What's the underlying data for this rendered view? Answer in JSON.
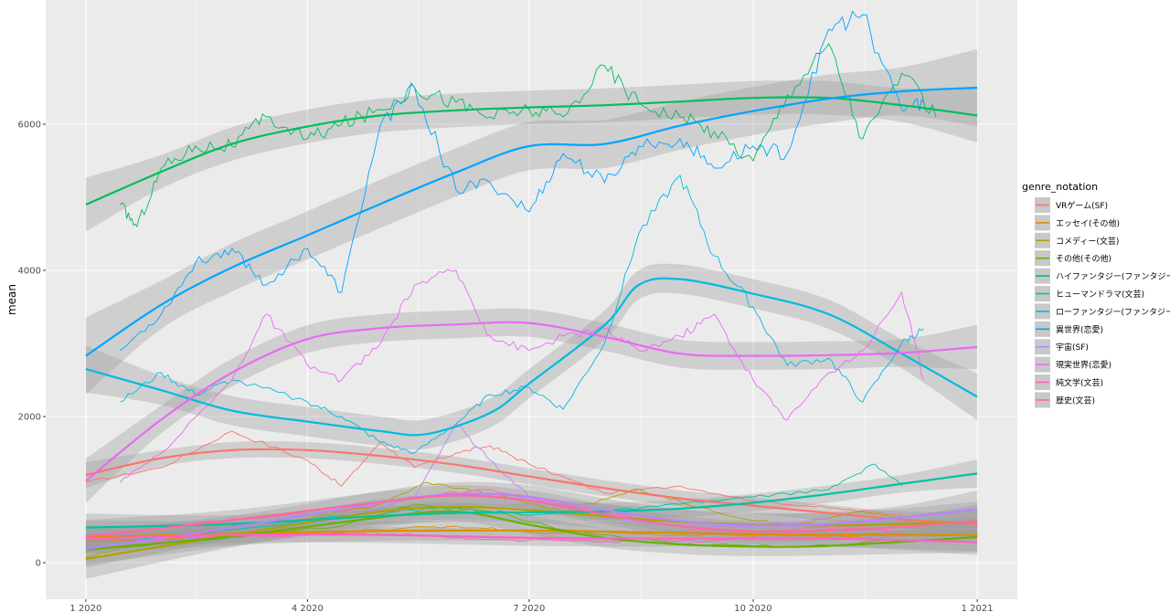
{
  "chart_data": {
    "type": "line",
    "xlabel": "",
    "ylabel": "mean",
    "legend_title": "genre_notation",
    "legend_position": "right",
    "grid": true,
    "panel_background": "#ebebeb",
    "xlim": [
      "2020-01-01",
      "2021-01-01"
    ],
    "ylim": [
      -500,
      7700
    ],
    "x_ticks": [
      {
        "value": "2020-01-01",
        "label": "1 2020"
      },
      {
        "value": "2020-04-01",
        "label": "4 2020"
      },
      {
        "value": "2020-07-01",
        "label": "7 2020"
      },
      {
        "value": "2020-10-01",
        "label": "10 2020"
      },
      {
        "value": "2021-01-01",
        "label": "1 2021"
      }
    ],
    "y_ticks": [
      0,
      2000,
      4000,
      6000
    ],
    "series": [
      {
        "name": "VRゲーム(SF)",
        "color": "#F8766D",
        "raw_x": [
          "2020-01-01",
          "2020-02-01",
          "2020-03-01",
          "2020-04-01",
          "2020-04-15",
          "2020-05-01",
          "2020-05-15",
          "2020-06-01",
          "2020-06-15",
          "2020-07-01",
          "2020-08-01",
          "2020-09-01",
          "2020-10-01",
          "2020-11-01",
          "2020-12-01"
        ],
        "raw_y": [
          1100,
          1300,
          1800,
          1400,
          1050,
          1650,
          1300,
          1500,
          1600,
          1350,
          950,
          1050,
          850,
          750,
          650
        ],
        "smooth_x": [
          "2020-01-01",
          "2020-02-01",
          "2020-03-01",
          "2020-04-01",
          "2020-05-01",
          "2020-06-01",
          "2020-07-01",
          "2020-08-01",
          "2020-09-01",
          "2020-10-01",
          "2020-11-01",
          "2020-12-01",
          "2021-01-01"
        ],
        "smooth_y": [
          1200,
          1430,
          1540,
          1540,
          1460,
          1340,
          1180,
          1020,
          880,
          780,
          680,
          590,
          530
        ],
        "se": 110
      },
      {
        "name": "エッセイ(その他)",
        "color": "#DB8E00",
        "raw_x": [
          "2020-01-01",
          "2020-03-01",
          "2020-05-01",
          "2020-06-01",
          "2020-07-01",
          "2020-09-01",
          "2020-11-01",
          "2020-12-01"
        ],
        "raw_y": [
          300,
          350,
          450,
          500,
          420,
          380,
          360,
          400
        ],
        "smooth_x": [
          "2020-01-01",
          "2020-04-01",
          "2020-07-01",
          "2020-10-01",
          "2021-01-01"
        ],
        "smooth_y": [
          350,
          420,
          440,
          390,
          380
        ],
        "se": 140
      },
      {
        "name": "コメディー(文芸)",
        "color": "#AEA200",
        "raw_x": [
          "2020-01-01",
          "2020-02-01",
          "2020-03-01",
          "2020-04-01",
          "2020-05-01",
          "2020-05-20",
          "2020-06-15",
          "2020-07-15",
          "2020-08-15",
          "2020-09-15",
          "2020-10-15",
          "2020-11-15",
          "2020-12-01"
        ],
        "raw_y": [
          80,
          300,
          500,
          600,
          800,
          1100,
          950,
          700,
          1000,
          700,
          500,
          700,
          600
        ],
        "smooth_x": [
          "2020-01-01",
          "2020-03-01",
          "2020-05-01",
          "2020-06-01",
          "2020-07-01",
          "2020-09-01",
          "2020-11-01",
          "2021-01-01"
        ],
        "smooth_y": [
          50,
          380,
          700,
          760,
          720,
          560,
          510,
          560
        ],
        "se": 170
      },
      {
        "name": "その他(その他)",
        "color": "#64B200",
        "raw_x": [
          "2020-01-15",
          "2020-03-01",
          "2020-04-15",
          "2020-05-15",
          "2020-06-15",
          "2020-07-15",
          "2020-09-01",
          "2020-10-15",
          "2020-12-01"
        ],
        "raw_y": [
          200,
          350,
          500,
          800,
          700,
          450,
          250,
          220,
          300
        ],
        "smooth_x": [
          "2020-01-01",
          "2020-03-01",
          "2020-05-01",
          "2020-06-01",
          "2020-07-01",
          "2020-08-01",
          "2020-09-01",
          "2020-10-01",
          "2020-11-01",
          "2021-01-01"
        ],
        "smooth_y": [
          180,
          360,
          620,
          700,
          520,
          340,
          250,
          220,
          230,
          350
        ],
        "se": 130
      },
      {
        "name": "ハイファンタジー(ファンタジー)",
        "color": "#00BD5C",
        "raw_x": [
          "2020-01-15",
          "2020-01-22",
          "2020-02-01",
          "2020-02-15",
          "2020-03-01",
          "2020-03-15",
          "2020-04-01",
          "2020-04-15",
          "2020-05-01",
          "2020-05-15",
          "2020-06-01",
          "2020-06-15",
          "2020-07-01",
          "2020-07-15",
          "2020-08-01",
          "2020-08-15",
          "2020-09-01",
          "2020-09-15",
          "2020-10-01",
          "2020-10-15",
          "2020-11-01",
          "2020-11-15",
          "2020-12-01",
          "2020-12-15"
        ],
        "raw_y": [
          4900,
          4600,
          5400,
          5700,
          5700,
          6100,
          5800,
          6000,
          6200,
          6500,
          6300,
          6100,
          6200,
          6100,
          6800,
          6300,
          6100,
          5900,
          5500,
          6400,
          7100,
          5800,
          6700,
          6100
        ],
        "smooth_x": [
          "2020-01-01",
          "2020-02-01",
          "2020-03-01",
          "2020-04-01",
          "2020-05-01",
          "2020-06-01",
          "2020-07-01",
          "2020-08-01",
          "2020-09-01",
          "2020-10-01",
          "2020-11-01",
          "2020-12-01",
          "2021-01-01"
        ],
        "smooth_y": [
          4900,
          5350,
          5730,
          5970,
          6120,
          6190,
          6230,
          6260,
          6310,
          6360,
          6360,
          6260,
          6120
        ],
        "se": 230
      },
      {
        "name": "ヒューマンドラマ(文芸)",
        "color": "#00C1A3",
        "raw_x": [
          "2020-01-15",
          "2020-03-01",
          "2020-05-01",
          "2020-06-01",
          "2020-07-01",
          "2020-08-01",
          "2020-09-01",
          "2020-10-01",
          "2020-11-01",
          "2020-11-20",
          "2020-12-01"
        ],
        "raw_y": [
          300,
          450,
          700,
          750,
          650,
          700,
          800,
          900,
          1000,
          1350,
          1050
        ],
        "smooth_x": [
          "2020-01-01",
          "2020-03-01",
          "2020-05-01",
          "2020-06-01",
          "2020-07-01",
          "2020-08-01",
          "2020-09-01",
          "2020-10-01",
          "2020-11-01",
          "2020-12-01",
          "2021-01-01"
        ],
        "smooth_y": [
          480,
          530,
          640,
          680,
          690,
          700,
          740,
          820,
          940,
          1080,
          1220
        ],
        "se": 120
      },
      {
        "name": "ローファンタジー(ファンタジー)",
        "color": "#00BAE0",
        "raw_x": [
          "2020-01-15",
          "2020-02-01",
          "2020-02-15",
          "2020-03-01",
          "2020-04-01",
          "2020-04-15",
          "2020-05-01",
          "2020-05-15",
          "2020-06-01",
          "2020-06-15",
          "2020-07-01",
          "2020-07-15",
          "2020-08-01",
          "2020-08-15",
          "2020-09-01",
          "2020-09-15",
          "2020-10-01",
          "2020-10-15",
          "2020-11-01",
          "2020-11-15",
          "2020-12-01",
          "2020-12-10"
        ],
        "raw_y": [
          2200,
          2600,
          2300,
          2500,
          2200,
          2000,
          1650,
          1500,
          1900,
          2300,
          2400,
          2100,
          3000,
          4500,
          5300,
          4200,
          3500,
          2700,
          2800,
          2200,
          3000,
          3200
        ],
        "smooth_x": [
          "2020-01-01",
          "2020-02-01",
          "2020-03-01",
          "2020-04-01",
          "2020-05-01",
          "2020-05-20",
          "2020-06-15",
          "2020-07-01",
          "2020-08-01",
          "2020-08-15",
          "2020-09-01",
          "2020-10-01",
          "2020-11-01",
          "2020-12-01",
          "2021-01-01"
        ],
        "smooth_y": [
          2650,
          2360,
          2080,
          1930,
          1800,
          1760,
          2050,
          2450,
          3250,
          3800,
          3880,
          3680,
          3400,
          2860,
          2270
        ],
        "se": 200
      },
      {
        "name": "異世界(恋愛)",
        "color": "#00A5FF",
        "raw_x": [
          "2020-01-15",
          "2020-02-01",
          "2020-02-15",
          "2020-03-01",
          "2020-03-15",
          "2020-04-01",
          "2020-04-15",
          "2020-05-01",
          "2020-05-15",
          "2020-06-01",
          "2020-06-15",
          "2020-07-01",
          "2020-07-15",
          "2020-08-01",
          "2020-08-15",
          "2020-09-01",
          "2020-09-15",
          "2020-10-01",
          "2020-10-15",
          "2020-11-01",
          "2020-11-15",
          "2020-12-01",
          "2020-12-10"
        ],
        "raw_y": [
          2900,
          3400,
          4100,
          4300,
          3800,
          4300,
          3700,
          6000,
          6500,
          5100,
          5200,
          4800,
          5600,
          5200,
          5700,
          5800,
          5400,
          5700,
          5600,
          7300,
          7500,
          6200,
          6300
        ],
        "smooth_x": [
          "2020-01-01",
          "2020-02-01",
          "2020-03-01",
          "2020-04-01",
          "2020-05-01",
          "2020-06-01",
          "2020-07-01",
          "2020-08-01",
          "2020-09-01",
          "2020-10-01",
          "2020-11-01",
          "2020-12-01",
          "2021-01-01"
        ],
        "smooth_y": [
          2830,
          3530,
          4040,
          4480,
          4910,
          5340,
          5700,
          5730,
          5980,
          6180,
          6350,
          6450,
          6500
        ],
        "se": 330
      },
      {
        "name": "宇宙(SF)",
        "color": "#B983FF",
        "raw_x": [
          "2020-01-15",
          "2020-03-01",
          "2020-04-15",
          "2020-05-15",
          "2020-06-01",
          "2020-06-15",
          "2020-07-01",
          "2020-08-01",
          "2020-09-01",
          "2020-10-01",
          "2020-11-01"
        ],
        "raw_y": [
          200,
          400,
          600,
          900,
          1900,
          1400,
          900,
          600,
          500,
          500,
          600
        ],
        "smooth_x": [
          "2020-01-01",
          "2020-03-01",
          "2020-05-01",
          "2020-06-01",
          "2020-07-01",
          "2020-08-01",
          "2020-09-01",
          "2020-10-01",
          "2020-11-01",
          "2020-12-01",
          "2021-01-01"
        ],
        "smooth_y": [
          190,
          480,
          820,
          940,
          900,
          720,
          570,
          510,
          530,
          620,
          730
        ],
        "se": 160
      },
      {
        "name": "現実世界(恋愛)",
        "color": "#E76BF3",
        "raw_x": [
          "2020-01-15",
          "2020-02-01",
          "2020-03-01",
          "2020-03-15",
          "2020-04-01",
          "2020-04-15",
          "2020-05-01",
          "2020-05-15",
          "2020-06-01",
          "2020-06-15",
          "2020-07-01",
          "2020-07-15",
          "2020-08-01",
          "2020-08-15",
          "2020-09-01",
          "2020-09-15",
          "2020-10-01",
          "2020-10-15",
          "2020-11-01",
          "2020-11-15",
          "2020-12-01",
          "2020-12-10"
        ],
        "raw_y": [
          1100,
          1500,
          2500,
          3400,
          2700,
          2500,
          3000,
          3800,
          4000,
          3100,
          2900,
          3100,
          3200,
          2900,
          3100,
          3400,
          2500,
          1950,
          2600,
          2900,
          3700,
          2500
        ],
        "smooth_x": [
          "2020-01-01",
          "2020-02-01",
          "2020-03-01",
          "2020-04-01",
          "2020-05-01",
          "2020-06-01",
          "2020-07-01",
          "2020-08-01",
          "2020-09-01",
          "2020-10-01",
          "2020-11-01",
          "2020-12-01",
          "2021-01-01"
        ],
        "smooth_y": [
          1120,
          1960,
          2600,
          3060,
          3210,
          3260,
          3280,
          3090,
          2860,
          2830,
          2840,
          2870,
          2950
        ],
        "se": 190
      },
      {
        "name": "純文学(文芸)",
        "color": "#FF61C3",
        "raw_x": [
          "2020-01-15",
          "2020-03-01",
          "2020-04-15",
          "2020-05-15",
          "2020-06-15",
          "2020-07-15",
          "2020-08-15",
          "2020-09-15",
          "2020-10-15",
          "2020-11-15",
          "2020-12-01"
        ],
        "raw_y": [
          300,
          350,
          400,
          380,
          320,
          300,
          280,
          300,
          400,
          500,
          350
        ],
        "smooth_x": [
          "2020-01-01",
          "2020-03-01",
          "2020-05-01",
          "2020-07-01",
          "2020-09-01",
          "2020-11-01",
          "2021-01-01"
        ],
        "smooth_y": [
          330,
          380,
          380,
          340,
          330,
          330,
          280
        ],
        "se": 110
      },
      {
        "name": "歴史(文芸)",
        "color": "#FF67A4",
        "raw_x": [
          "2020-01-15",
          "2020-03-01",
          "2020-04-15",
          "2020-05-15",
          "2020-06-15",
          "2020-07-15",
          "2020-08-15",
          "2020-09-15",
          "2020-10-15",
          "2020-11-15",
          "2020-12-01"
        ],
        "raw_y": [
          400,
          600,
          700,
          900,
          1000,
          800,
          600,
          400,
          450,
          500,
          400
        ],
        "smooth_x": [
          "2020-01-01",
          "2020-03-01",
          "2020-05-01",
          "2020-06-01",
          "2020-07-01",
          "2020-08-01",
          "2020-09-01",
          "2020-10-01",
          "2020-11-01",
          "2020-12-01",
          "2021-01-01"
        ],
        "smooth_y": [
          360,
          580,
          830,
          920,
          850,
          660,
          500,
          430,
          440,
          490,
          570
        ],
        "se": 140
      }
    ]
  }
}
